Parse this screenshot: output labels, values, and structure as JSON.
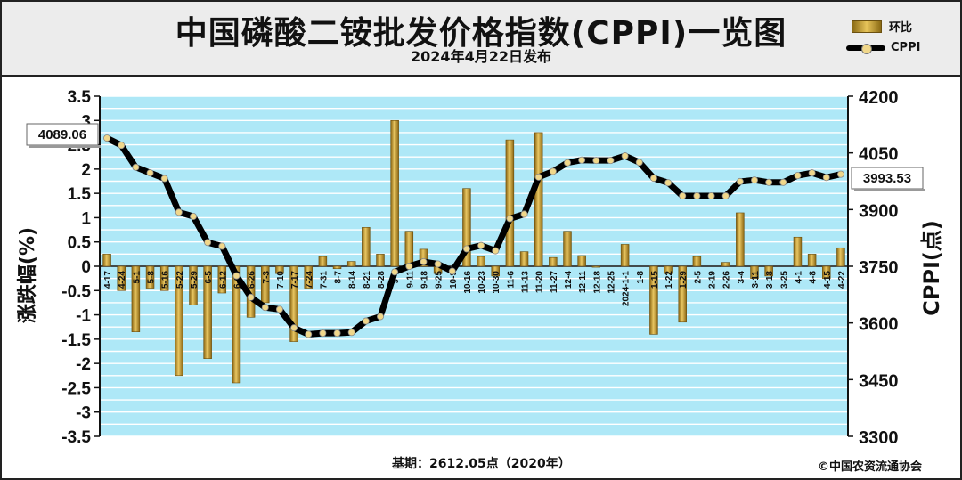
{
  "header": {
    "title": "中国磷酸二铵批发价格指数(CPPI)一览图",
    "date": "2024年4月22日发布"
  },
  "legend": {
    "bar_label": "环比",
    "line_label": "CPPI"
  },
  "footer": {
    "base_note": "基期：2612.05点（2020年）",
    "copyright": "©中国农资流通协会"
  },
  "colors": {
    "bar": "#c9a13a",
    "line": "#000000",
    "marker": "#f0d78a",
    "plot_bg": "#aee8f7",
    "grid": "#ffffff"
  },
  "chart_data": {
    "type": "bar+line",
    "categories": [
      "4-17",
      "4-24",
      "5-1",
      "5-8",
      "5-16",
      "5-22",
      "5-29",
      "6-5",
      "6-12",
      "6-19",
      "6-26",
      "7-3",
      "7-10",
      "7-17",
      "7-24",
      "7-31",
      "8-7",
      "8-14",
      "8-21",
      "8-28",
      "9-4",
      "9-11",
      "9-18",
      "9-25",
      "10-9",
      "10-16",
      "10-23",
      "10-30",
      "11-6",
      "11-13",
      "11-20",
      "11-27",
      "12-4",
      "12-11",
      "12-18",
      "12-25",
      "2024-1-1",
      "1-8",
      "1-15",
      "1-22",
      "1-29",
      "2-5",
      "2-19",
      "2-26",
      "3-4",
      "3-11",
      "3-18",
      "3-25",
      "4-1",
      "4-8",
      "4-15",
      "4-22"
    ],
    "series": [
      {
        "name": "环比",
        "axis": "left",
        "values": [
          0.25,
          -0.5,
          -1.35,
          -0.45,
          -0.5,
          -2.25,
          -0.8,
          -1.9,
          -0.55,
          -2.4,
          -1.05,
          -0.75,
          -0.15,
          -1.55,
          -0.45,
          0.2,
          -0.05,
          0.1,
          0.8,
          0.25,
          3.0,
          0.72,
          0.35,
          -0.15,
          0.0,
          1.6,
          0.2,
          -0.2,
          2.6,
          0.3,
          2.75,
          0.18,
          0.72,
          0.22,
          -0.02,
          0.0,
          0.45,
          0.0,
          -1.4,
          -0.15,
          -1.15,
          0.2,
          0.0,
          0.08,
          1.1,
          -0.25,
          -0.2,
          0.0,
          0.6,
          0.25,
          -0.25,
          0.38
        ]
      },
      {
        "name": "CPPI",
        "axis": "right",
        "values": [
          4089.06,
          4070,
          4012,
          3997,
          3982,
          3893,
          3882,
          3813,
          3803,
          3725,
          3668,
          3641,
          3636,
          3587,
          3570,
          3573,
          3573,
          3575,
          3605,
          3617,
          3735,
          3750,
          3762,
          3756,
          3737,
          3796,
          3805,
          3791,
          3876,
          3888,
          3986,
          4001,
          4024,
          4031,
          4030,
          4030,
          4042,
          4025,
          3983,
          3971,
          3936,
          3936,
          3936,
          3936,
          3974,
          3978,
          3972,
          3972,
          3990,
          3997,
          3985,
          3993.53
        ]
      }
    ],
    "ylabel_left": "涨跌幅(%)",
    "ylabel_right": "CPPI(点)",
    "ylim_left": [
      -3.5,
      3.5
    ],
    "ylim_right": [
      3300,
      4200
    ],
    "yticks_left": [
      "3.5",
      "3",
      "2.5",
      "2",
      "1.5",
      "1",
      "0.5",
      "0",
      "-0.5",
      "-1",
      "-1.5",
      "-2",
      "-2.5",
      "-3",
      "-3.5"
    ],
    "yticks_right": [
      "4200",
      "4050",
      "3900",
      "3750",
      "3600",
      "3450",
      "3300"
    ],
    "callouts": {
      "first": "4089.06",
      "last": "3993.53"
    }
  }
}
